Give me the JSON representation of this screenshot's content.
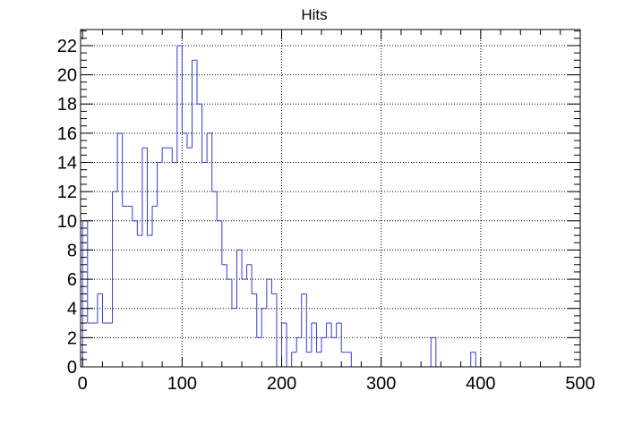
{
  "chart_data": {
    "type": "bar",
    "title": "Hits",
    "xlabel": "",
    "ylabel": "",
    "bin_width": 5,
    "bin_start": 0,
    "values": [
      10,
      3,
      3,
      5,
      3,
      3,
      12,
      16,
      11,
      11,
      10,
      9,
      15,
      9,
      11,
      14,
      15,
      15,
      14,
      22,
      16,
      15,
      21,
      18,
      14,
      16,
      12,
      10,
      7,
      6,
      4,
      8,
      6,
      7,
      5,
      2,
      4,
      6,
      5,
      0,
      3,
      0,
      1,
      2,
      5,
      1,
      3,
      1,
      2,
      3,
      2,
      3,
      1,
      1,
      0,
      0,
      0,
      0,
      0,
      0,
      0,
      0,
      0,
      0,
      0,
      0,
      0,
      0,
      0,
      0,
      2,
      0,
      0,
      0,
      0,
      0,
      0,
      0,
      1
    ],
    "xlim": [
      -2,
      500
    ],
    "ylim": [
      0,
      23.1
    ],
    "x_ticks": [
      "0",
      "100",
      "200",
      "300",
      "400",
      "500"
    ],
    "y_ticks": [
      "0",
      "2",
      "4",
      "6",
      "8",
      "10",
      "12",
      "14",
      "16",
      "18",
      "20",
      "22"
    ],
    "grid": true,
    "line_color": "#3a3ad0"
  }
}
